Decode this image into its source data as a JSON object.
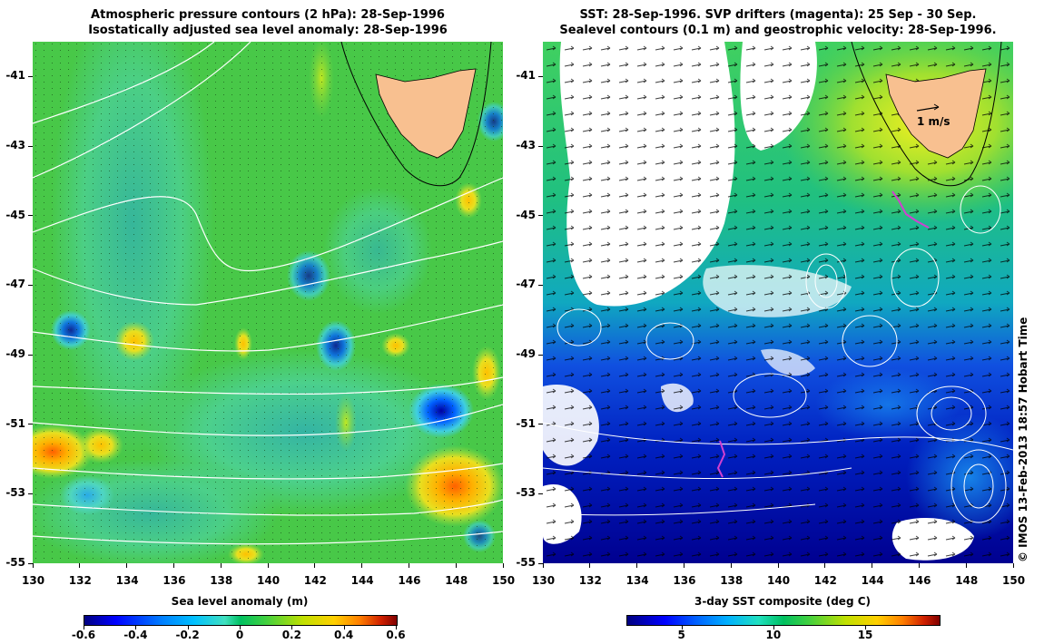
{
  "left_panel": {
    "title_line1": "Atmospheric pressure contours (2 hPa): 28-Sep-1996",
    "title_line2": "Isostatically adjusted sea level anomaly: 28-Sep-1996",
    "colorbar": {
      "label": "Sea level anomaly (m)",
      "min": -0.6,
      "max": 0.6,
      "ticks": [
        "-0.6",
        "-0.4",
        "-0.2",
        "0",
        "0.2",
        "0.4",
        "0.6"
      ]
    }
  },
  "right_panel": {
    "title_line1": "SST: 28-Sep-1996. SVP drifters (magenta): 25 Sep - 30 Sep.",
    "title_line2": "Sealevel contours (0.1 m) and geostrophic velocity: 28-Sep-1996.",
    "velocity_scale_label": "1 m/s",
    "colorbar": {
      "label": "3-day SST composite (deg C)",
      "min": 2,
      "max": 19,
      "ticks": [
        "5",
        "10",
        "15"
      ],
      "tick_values": [
        5,
        10,
        15
      ]
    }
  },
  "axes": {
    "x_range": [
      130,
      150
    ],
    "y_range": [
      -55,
      -40
    ],
    "x_ticks": [
      "130",
      "132",
      "134",
      "136",
      "138",
      "140",
      "142",
      "144",
      "146",
      "148",
      "150"
    ],
    "y_ticks": [
      "-41",
      "-43",
      "-45",
      "-47",
      "-49",
      "-51",
      "-53",
      "-55"
    ],
    "y_values": [
      -41,
      -43,
      -45,
      -47,
      -49,
      -51,
      -53,
      -55
    ]
  },
  "land_name_hidden": "",
  "colors": {
    "land": "#f8c090",
    "background_left": "#4cc84c",
    "contours": "#ffffff",
    "drifters": "#d040d0"
  },
  "copyright": "© IMOS 13-Feb-2013 18:57 Hobart Time"
}
